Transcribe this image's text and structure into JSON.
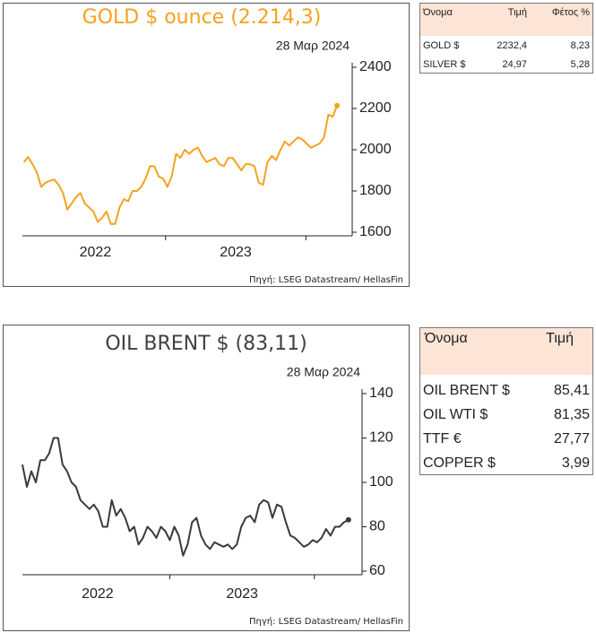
{
  "chart_data": [
    {
      "type": "line",
      "title": "GOLD $ ounce (2.214,3)",
      "subtitle": "28 Μαρ 2024",
      "source": "Πηγή: LSEG Datastream/ HellasFin",
      "x": [
        2021.99,
        2022.021,
        2022.052,
        2022.083,
        2022.114,
        2022.145,
        2022.176,
        2022.207,
        2022.238,
        2022.269,
        2022.3,
        2022.331,
        2022.362,
        2022.393,
        2022.424,
        2022.455,
        2022.486,
        2022.517,
        2022.548,
        2022.579,
        2022.61,
        2022.641,
        2022.672,
        2022.703,
        2022.734,
        2022.765,
        2022.796,
        2022.827,
        2022.858,
        2022.889,
        2022.92,
        2022.951,
        2022.982,
        2023.013,
        2023.044,
        2023.075,
        2023.106,
        2023.137,
        2023.168,
        2023.199,
        2023.23,
        2023.261,
        2023.292,
        2023.323,
        2023.354,
        2023.385,
        2023.416,
        2023.447,
        2023.478,
        2023.509,
        2023.54,
        2023.571,
        2023.602,
        2023.633,
        2023.664,
        2023.695,
        2023.726,
        2023.757,
        2023.788,
        2023.819,
        2023.85,
        2023.881,
        2023.912,
        2023.943,
        2023.974,
        2024.005,
        2024.036,
        2024.067,
        2024.098,
        2024.129,
        2024.16,
        2024.191,
        2024.222
      ],
      "series": [
        {
          "name": "GOLD $ ounce",
          "color": "#f5a21f",
          "values": [
            1940,
            1965,
            1930,
            1890,
            1820,
            1840,
            1850,
            1855,
            1830,
            1790,
            1710,
            1740,
            1770,
            1790,
            1740,
            1720,
            1700,
            1650,
            1670,
            1700,
            1640,
            1640,
            1720,
            1760,
            1750,
            1800,
            1800,
            1820,
            1860,
            1920,
            1920,
            1870,
            1860,
            1820,
            1870,
            1980,
            1960,
            2000,
            1980,
            2000,
            2010,
            1970,
            1940,
            1950,
            1960,
            1930,
            1920,
            1960,
            1960,
            1930,
            1900,
            1930,
            1930,
            1920,
            1840,
            1830,
            1940,
            1970,
            1950,
            2000,
            2040,
            2020,
            2040,
            2060,
            2050,
            2030,
            2010,
            2020,
            2030,
            2060,
            2170,
            2160,
            2214
          ]
        }
      ],
      "xlim": [
        2021.98,
        2024.33
      ],
      "xticks": [
        {
          "value": 2022.5,
          "label": "2022"
        },
        {
          "value": 2023.5,
          "label": "2023"
        }
      ],
      "xtick_marks": [
        2023,
        2024
      ],
      "ylim": [
        1600,
        2400
      ],
      "yticks": [
        1600,
        1800,
        2000,
        2200,
        2400
      ],
      "grid": false
    },
    {
      "type": "line",
      "title": "OIL BRENT $ (83,11)",
      "subtitle": "28 Μαρ 2024",
      "source": "Πηγή: LSEG Datastream/ HellasFin",
      "x": [
        2021.98,
        2022.011,
        2022.042,
        2022.073,
        2022.104,
        2022.135,
        2022.165,
        2022.196,
        2022.227,
        2022.258,
        2022.289,
        2022.32,
        2022.351,
        2022.382,
        2022.413,
        2022.444,
        2022.474,
        2022.505,
        2022.536,
        2022.567,
        2022.598,
        2022.629,
        2022.66,
        2022.691,
        2022.722,
        2022.753,
        2022.783,
        2022.814,
        2022.845,
        2022.876,
        2022.907,
        2022.938,
        2022.969,
        2023.0,
        2023.031,
        2023.062,
        2023.092,
        2023.123,
        2023.154,
        2023.185,
        2023.216,
        2023.247,
        2023.278,
        2023.309,
        2023.34,
        2023.371,
        2023.401,
        2023.432,
        2023.463,
        2023.494,
        2023.525,
        2023.556,
        2023.587,
        2023.618,
        2023.649,
        2023.68,
        2023.71,
        2023.741,
        2023.772,
        2023.803,
        2023.834,
        2023.865,
        2023.896,
        2023.927,
        2023.958,
        2023.989,
        2024.019,
        2024.05,
        2024.081,
        2024.112,
        2024.143,
        2024.174,
        2024.205,
        2024.236
      ],
      "series": [
        {
          "name": "OIL BRENT $",
          "color": "#3a3a3a",
          "values": [
            108,
            98,
            105,
            100,
            110,
            110,
            113,
            120,
            120,
            108,
            105,
            100,
            98,
            92,
            90,
            88,
            90,
            87,
            80,
            80,
            92,
            85,
            88,
            84,
            78,
            80,
            72,
            75,
            80,
            78,
            75,
            80,
            78,
            74,
            80,
            76,
            67,
            72,
            82,
            84,
            76,
            72,
            70,
            73,
            72,
            71,
            72,
            70,
            72,
            80,
            84,
            85,
            82,
            90,
            92,
            91,
            84,
            90,
            89,
            82,
            76,
            75,
            73,
            71,
            72,
            74,
            73,
            75,
            79,
            76,
            80,
            80,
            82,
            83.11
          ]
        }
      ],
      "xlim": [
        2021.98,
        2024.33
      ],
      "xticks": [
        {
          "value": 2022.5,
          "label": "2022"
        },
        {
          "value": 2023.5,
          "label": "2023"
        }
      ],
      "xtick_marks": [
        2023,
        2024
      ],
      "ylim": [
        60,
        140
      ],
      "yticks": [
        60,
        80,
        100,
        120,
        140
      ],
      "grid": false
    }
  ],
  "tables": [
    {
      "header": [
        "Όνομα",
        "Τιμή",
        "Φέτος %"
      ],
      "rows": [
        [
          "GOLD $",
          "2232,4",
          "8,23"
        ],
        [
          "SILVER $",
          "24,97",
          "5,28"
        ]
      ]
    },
    {
      "header": [
        "Όνομα",
        "Τιμή"
      ],
      "rows": [
        [
          "OIL BRENT $",
          "85,41"
        ],
        [
          "OIL WTI $",
          "81,35"
        ],
        [
          "TTF €",
          "27,77"
        ],
        [
          "COPPER $",
          "3,99"
        ]
      ]
    }
  ]
}
